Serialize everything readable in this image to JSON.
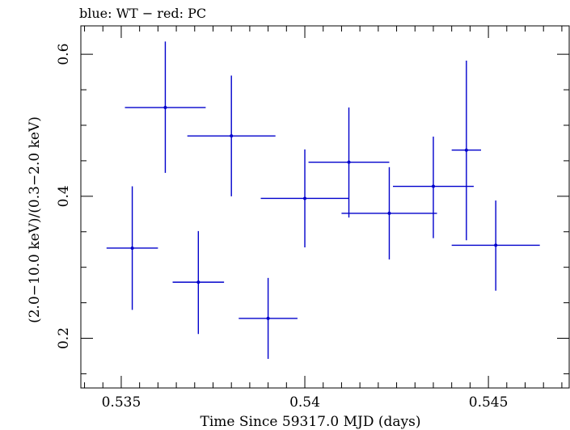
{
  "chart_data": {
    "type": "scatter",
    "title": "blue: WT − red: PC",
    "xlabel": "Time Since 59317.0 MJD (days)",
    "ylabel": "(2.0−10.0 keV)/(0.3−2.0 keV)",
    "xlim": [
      0.5339,
      0.5472
    ],
    "ylim": [
      0.13,
      0.64
    ],
    "x_ticks": [
      0.535,
      0.54,
      0.545
    ],
    "x_tick_labels": [
      "0.535",
      "0.54",
      "0.545"
    ],
    "y_ticks": [
      0.2,
      0.4,
      0.6
    ],
    "y_tick_labels": [
      "0.2",
      "0.4",
      "0.6"
    ],
    "x_minor_step": 0.0005,
    "y_minor_step": 0.05,
    "grid": false,
    "series": [
      {
        "color": "#0000cc",
        "points": [
          {
            "x": 0.5353,
            "xerr": 0.0007,
            "y": 0.327,
            "ylo": 0.24,
            "yhi": 0.414
          },
          {
            "x": 0.5362,
            "xerr": 0.0011,
            "y": 0.525,
            "ylo": 0.433,
            "yhi": 0.618
          },
          {
            "x": 0.5371,
            "xerr": 0.0007,
            "y": 0.279,
            "ylo": 0.206,
            "yhi": 0.351
          },
          {
            "x": 0.538,
            "xerr": 0.0012,
            "y": 0.485,
            "ylo": 0.4,
            "yhi": 0.57
          },
          {
            "x": 0.539,
            "xerr": 0.0008,
            "y": 0.228,
            "ylo": 0.171,
            "yhi": 0.285
          },
          {
            "x": 0.54,
            "xerr": 0.0012,
            "y": 0.397,
            "ylo": 0.328,
            "yhi": 0.466
          },
          {
            "x": 0.5412,
            "xerr": 0.0011,
            "y": 0.448,
            "ylo": 0.37,
            "yhi": 0.525
          },
          {
            "x": 0.5423,
            "xerr": 0.0013,
            "y": 0.376,
            "ylo": 0.311,
            "yhi": 0.441
          },
          {
            "x": 0.5435,
            "xerr": 0.0011,
            "y": 0.414,
            "ylo": 0.341,
            "yhi": 0.484
          },
          {
            "x": 0.5444,
            "xerr": 0.0004,
            "y": 0.465,
            "ylo": 0.338,
            "yhi": 0.591
          },
          {
            "x": 0.5452,
            "xerr": 0.0012,
            "y": 0.331,
            "ylo": 0.267,
            "yhi": 0.394
          }
        ]
      }
    ]
  }
}
